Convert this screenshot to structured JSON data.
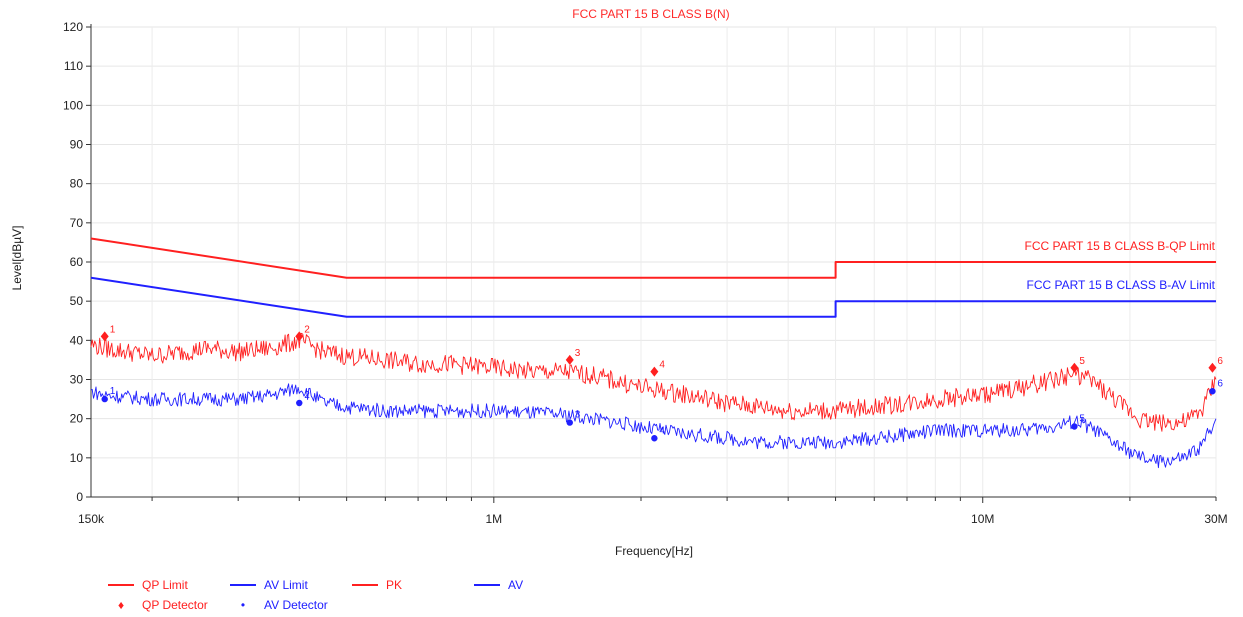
{
  "chart_data": {
    "type": "line",
    "title": "FCC PART 15 B CLASS B(N)",
    "xlabel": "Frequency[Hz]",
    "ylabel": "Level[dBµV]",
    "x_scale": "log",
    "xlim": [
      150000,
      30000000
    ],
    "ylim": [
      0,
      120
    ],
    "y_ticks": [
      0,
      10,
      20,
      30,
      40,
      50,
      60,
      70,
      80,
      90,
      100,
      110,
      120
    ],
    "x_ticks": [
      {
        "value": 150000,
        "label": "150k"
      },
      {
        "value": 1000000,
        "label": "1M"
      },
      {
        "value": 10000000,
        "label": "10M"
      },
      {
        "value": 30000000,
        "label": "30M"
      }
    ],
    "limit_labels": {
      "qp": "FCC PART 15 B CLASS B-QP Limit",
      "av": "FCC PART 15 B CLASS B-AV Limit"
    },
    "series": [
      {
        "name": "QP Limit",
        "color": "#ff2020",
        "points": [
          [
            150000,
            66
          ],
          [
            500000,
            56
          ],
          [
            5000000,
            56
          ],
          [
            5000000,
            60
          ],
          [
            30000000,
            60
          ]
        ]
      },
      {
        "name": "AV Limit",
        "color": "#2020ff",
        "points": [
          [
            150000,
            56
          ],
          [
            500000,
            46
          ],
          [
            5000000,
            46
          ],
          [
            5000000,
            50
          ],
          [
            30000000,
            50
          ]
        ]
      },
      {
        "name": "PK",
        "color": "#ff2020",
        "points": [
          [
            150000,
            39
          ],
          [
            160000,
            38
          ],
          [
            180000,
            37
          ],
          [
            200000,
            36
          ],
          [
            230000,
            37
          ],
          [
            260000,
            38
          ],
          [
            300000,
            37
          ],
          [
            350000,
            38
          ],
          [
            400000,
            40
          ],
          [
            450000,
            37
          ],
          [
            500000,
            36
          ],
          [
            600000,
            35
          ],
          [
            700000,
            34
          ],
          [
            800000,
            34
          ],
          [
            1000000,
            33
          ],
          [
            1200000,
            32
          ],
          [
            1400000,
            32
          ],
          [
            1600000,
            31
          ],
          [
            2000000,
            28
          ],
          [
            2500000,
            26
          ],
          [
            3000000,
            24
          ],
          [
            3500000,
            23
          ],
          [
            4000000,
            22
          ],
          [
            5000000,
            22
          ],
          [
            6000000,
            23
          ],
          [
            7000000,
            24
          ],
          [
            8000000,
            25
          ],
          [
            10000000,
            26
          ],
          [
            12000000,
            28
          ],
          [
            14000000,
            30
          ],
          [
            15500000,
            31.5
          ],
          [
            17000000,
            29
          ],
          [
            19000000,
            24
          ],
          [
            21000000,
            20
          ],
          [
            23000000,
            19
          ],
          [
            26000000,
            19
          ],
          [
            28000000,
            22
          ],
          [
            30000000,
            30
          ]
        ]
      },
      {
        "name": "AV",
        "color": "#2020ff",
        "points": [
          [
            150000,
            27
          ],
          [
            160000,
            26
          ],
          [
            200000,
            25
          ],
          [
            250000,
            25
          ],
          [
            300000,
            25
          ],
          [
            350000,
            26
          ],
          [
            400000,
            28
          ],
          [
            450000,
            24
          ],
          [
            500000,
            23
          ],
          [
            600000,
            22
          ],
          [
            800000,
            22
          ],
          [
            1000000,
            22
          ],
          [
            1400000,
            21
          ],
          [
            1800000,
            19
          ],
          [
            2200000,
            17
          ],
          [
            2500000,
            16
          ],
          [
            3000000,
            15
          ],
          [
            3500000,
            14
          ],
          [
            4000000,
            14
          ],
          [
            5000000,
            14
          ],
          [
            6000000,
            15
          ],
          [
            7000000,
            16
          ],
          [
            8000000,
            17
          ],
          [
            10000000,
            17
          ],
          [
            12000000,
            17
          ],
          [
            14000000,
            18
          ],
          [
            15500000,
            19.5
          ],
          [
            17000000,
            17
          ],
          [
            19000000,
            13
          ],
          [
            21000000,
            10
          ],
          [
            23000000,
            9
          ],
          [
            26000000,
            10
          ],
          [
            28000000,
            13
          ],
          [
            30000000,
            20
          ]
        ]
      }
    ],
    "qp_detector": [
      {
        "label": "1",
        "x": 160000,
        "y": 41
      },
      {
        "label": "2",
        "x": 400000,
        "y": 41
      },
      {
        "label": "3",
        "x": 1430000,
        "y": 35
      },
      {
        "label": "4",
        "x": 2130000,
        "y": 32
      },
      {
        "label": "5",
        "x": 15400000,
        "y": 33
      },
      {
        "label": "6",
        "x": 29500000,
        "y": 33
      }
    ],
    "av_detector": [
      {
        "label": "1",
        "x": 160000,
        "y": 25
      },
      {
        "label": "2",
        "x": 400000,
        "y": 24
      },
      {
        "label": "3",
        "x": 1430000,
        "y": 19
      },
      {
        "label": "4",
        "x": 2130000,
        "y": 15
      },
      {
        "label": "5",
        "x": 15400000,
        "y": 18
      },
      {
        "label": "6",
        "x": 29500000,
        "y": 27
      }
    ],
    "legend": [
      {
        "name": "QP Limit",
        "kind": "line",
        "color": "#ff2020"
      },
      {
        "name": "AV Limit",
        "kind": "line",
        "color": "#2020ff"
      },
      {
        "name": "PK",
        "kind": "line",
        "color": "#ff2020"
      },
      {
        "name": "AV",
        "kind": "line",
        "color": "#2020ff"
      },
      {
        "name": "QP Detector",
        "kind": "marker",
        "symbol": "♦",
        "color": "#ff2020"
      },
      {
        "name": "AV Detector",
        "kind": "marker",
        "symbol": "•",
        "color": "#2020ff"
      }
    ],
    "grid": true,
    "legend_position": "bottom-left"
  }
}
